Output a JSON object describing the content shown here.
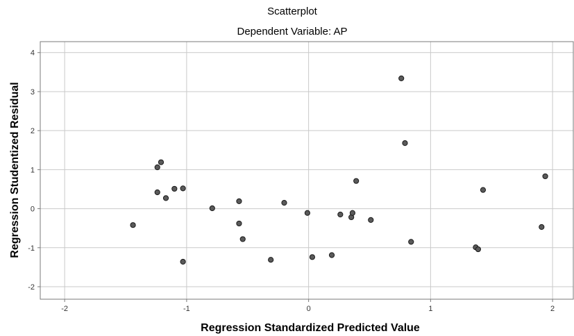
{
  "chart_data": {
    "type": "scatter",
    "title": "Scatterplot",
    "subtitle": "Dependent Variable: AP",
    "xlabel": "Regression Standardized Predicted Value",
    "ylabel": "Regression Studentized Residual",
    "xlim": [
      -2.2,
      2.17
    ],
    "ylim": [
      -2.32,
      4.28
    ],
    "xticks": [
      -2,
      -1,
      0,
      1,
      2
    ],
    "yticks": [
      -2,
      -1,
      0,
      1,
      2,
      3,
      4
    ],
    "xtick_labels": [
      "-2",
      "-1",
      "0",
      "1",
      "2"
    ],
    "ytick_labels": [
      "-2",
      "-1",
      "0",
      "1",
      "2",
      "3",
      "4"
    ],
    "grid": true,
    "marker_color": "#5a5a5a",
    "marker_edge": "#1a1a1a",
    "grid_color": "#c9c9c9",
    "points": [
      {
        "x": -1.44,
        "y": -0.42
      },
      {
        "x": -1.24,
        "y": 1.06
      },
      {
        "x": -1.21,
        "y": 1.19
      },
      {
        "x": -1.24,
        "y": 0.42
      },
      {
        "x": -1.17,
        "y": 0.27
      },
      {
        "x": -1.1,
        "y": 0.51
      },
      {
        "x": -1.03,
        "y": 0.52
      },
      {
        "x": -1.03,
        "y": -1.36
      },
      {
        "x": -0.79,
        "y": 0.01
      },
      {
        "x": -0.57,
        "y": 0.19
      },
      {
        "x": -0.57,
        "y": -0.38
      },
      {
        "x": -0.54,
        "y": -0.78
      },
      {
        "x": -0.31,
        "y": -1.31
      },
      {
        "x": -0.2,
        "y": 0.15
      },
      {
        "x": -0.01,
        "y": -0.11
      },
      {
        "x": 0.03,
        "y": -1.24
      },
      {
        "x": 0.19,
        "y": -1.19
      },
      {
        "x": 0.26,
        "y": -0.15
      },
      {
        "x": 0.35,
        "y": -0.22
      },
      {
        "x": 0.36,
        "y": -0.11
      },
      {
        "x": 0.39,
        "y": 0.71
      },
      {
        "x": 0.51,
        "y": -0.29
      },
      {
        "x": 0.76,
        "y": 3.34
      },
      {
        "x": 0.79,
        "y": 1.68
      },
      {
        "x": 0.84,
        "y": -0.85
      },
      {
        "x": 1.37,
        "y": -0.99
      },
      {
        "x": 1.39,
        "y": -1.04
      },
      {
        "x": 1.43,
        "y": 0.48
      },
      {
        "x": 1.91,
        "y": -0.47
      },
      {
        "x": 1.94,
        "y": 0.83
      }
    ]
  }
}
